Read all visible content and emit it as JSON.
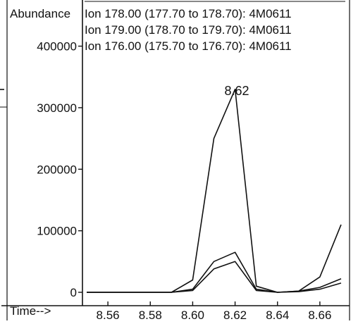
{
  "chart_data": {
    "type": "line",
    "ylabel": "Abundance",
    "xlabel": "Time-->",
    "series": [
      {
        "name": "Ion 178.00 (177.70 to 178.70): 4M0611",
        "x": [
          8.55,
          8.59,
          8.6,
          8.61,
          8.62,
          8.63,
          8.64,
          8.65,
          8.66,
          8.67
        ],
        "y": [
          0,
          0,
          20000,
          250000,
          330000,
          10000,
          0,
          2000,
          25000,
          110000
        ]
      },
      {
        "name": "Ion 179.00 (178.70 to 179.70): 4M0611",
        "x": [
          8.55,
          8.59,
          8.6,
          8.61,
          8.62,
          8.63,
          8.64,
          8.65,
          8.66,
          8.67
        ],
        "y": [
          0,
          0,
          5000,
          50000,
          65000,
          5000,
          0,
          2000,
          8000,
          22000
        ]
      },
      {
        "name": "Ion 176.00 (175.70 to 176.70): 4M0611",
        "x": [
          8.55,
          8.59,
          8.6,
          8.61,
          8.62,
          8.63,
          8.64,
          8.65,
          8.66,
          8.67
        ],
        "y": [
          0,
          0,
          3000,
          38000,
          50000,
          3000,
          0,
          1000,
          5000,
          15000
        ]
      }
    ],
    "yticks": [
      0,
      100000,
      200000,
      300000,
      400000
    ],
    "ytick_labels": [
      "0",
      "100000",
      "200000",
      "300000",
      "400000"
    ],
    "xticks": [
      8.56,
      8.58,
      8.6,
      8.62,
      8.64,
      8.66
    ],
    "xtick_labels": [
      "8.56",
      "8.58",
      "8.60",
      "8.62",
      "8.64",
      "8.66"
    ],
    "xlim": [
      8.548,
      8.672
    ],
    "ylim": [
      0,
      475000
    ],
    "annotations": [
      {
        "text": "8.62",
        "x": 8.62,
        "y": 330000
      }
    ],
    "legend_position": "top-right",
    "grid": false
  }
}
